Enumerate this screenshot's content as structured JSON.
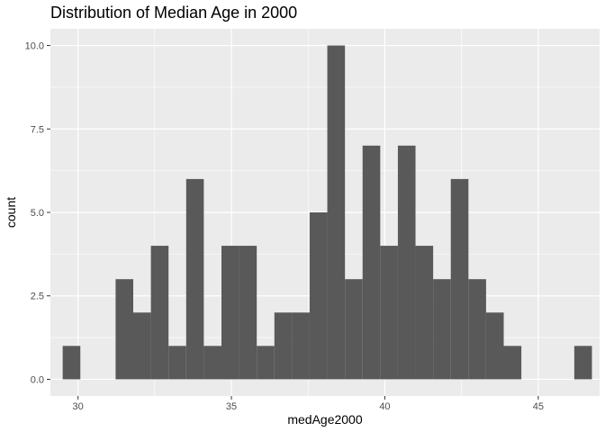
{
  "chart_data": {
    "type": "bar",
    "title": "Distribution of Median Age in 2000",
    "xlabel": "medAge2000",
    "ylabel": "count",
    "xlim": [
      29.1,
      47.0
    ],
    "ylim": [
      -0.5,
      10.5
    ],
    "x_ticks": [
      30,
      35,
      40,
      45
    ],
    "x_tick_labels": [
      "30",
      "35",
      "40",
      "45"
    ],
    "y_ticks": [
      0,
      2.5,
      5,
      7.5,
      10
    ],
    "y_tick_labels": [
      "0.0",
      "2.5",
      "5.0",
      "7.5",
      "10.0"
    ],
    "bin_width": 0.575,
    "bins": [
      {
        "start": 29.5,
        "end": 30.075,
        "count": 1
      },
      {
        "start": 30.075,
        "end": 30.65,
        "count": 0
      },
      {
        "start": 30.65,
        "end": 31.225,
        "count": 0
      },
      {
        "start": 31.225,
        "end": 31.8,
        "count": 3
      },
      {
        "start": 31.8,
        "end": 32.375,
        "count": 2
      },
      {
        "start": 32.375,
        "end": 32.95,
        "count": 4
      },
      {
        "start": 32.95,
        "end": 33.525,
        "count": 1
      },
      {
        "start": 33.525,
        "end": 34.1,
        "count": 6
      },
      {
        "start": 34.1,
        "end": 34.675,
        "count": 1
      },
      {
        "start": 34.675,
        "end": 35.25,
        "count": 4
      },
      {
        "start": 35.25,
        "end": 35.825,
        "count": 4
      },
      {
        "start": 35.825,
        "end": 36.4,
        "count": 1
      },
      {
        "start": 36.4,
        "end": 36.975,
        "count": 2
      },
      {
        "start": 36.975,
        "end": 37.55,
        "count": 2
      },
      {
        "start": 37.55,
        "end": 38.125,
        "count": 5
      },
      {
        "start": 38.125,
        "end": 38.7,
        "count": 10
      },
      {
        "start": 38.7,
        "end": 39.275,
        "count": 3
      },
      {
        "start": 39.275,
        "end": 39.85,
        "count": 7
      },
      {
        "start": 39.85,
        "end": 40.425,
        "count": 4
      },
      {
        "start": 40.425,
        "end": 41.0,
        "count": 7
      },
      {
        "start": 41.0,
        "end": 41.575,
        "count": 4
      },
      {
        "start": 41.575,
        "end": 42.15,
        "count": 3
      },
      {
        "start": 42.15,
        "end": 42.725,
        "count": 6
      },
      {
        "start": 42.725,
        "end": 43.3,
        "count": 3
      },
      {
        "start": 43.3,
        "end": 43.875,
        "count": 2
      },
      {
        "start": 43.875,
        "end": 44.45,
        "count": 1
      },
      {
        "start": 44.45,
        "end": 45.025,
        "count": 0
      },
      {
        "start": 45.025,
        "end": 45.6,
        "count": 0
      },
      {
        "start": 45.6,
        "end": 46.175,
        "count": 0
      },
      {
        "start": 46.175,
        "end": 46.75,
        "count": 1
      }
    ],
    "grid": true,
    "legend": "none",
    "colors": {
      "panel_background": "#ebebeb",
      "grid_major": "#ffffff",
      "bar_fill": "#595959"
    }
  }
}
